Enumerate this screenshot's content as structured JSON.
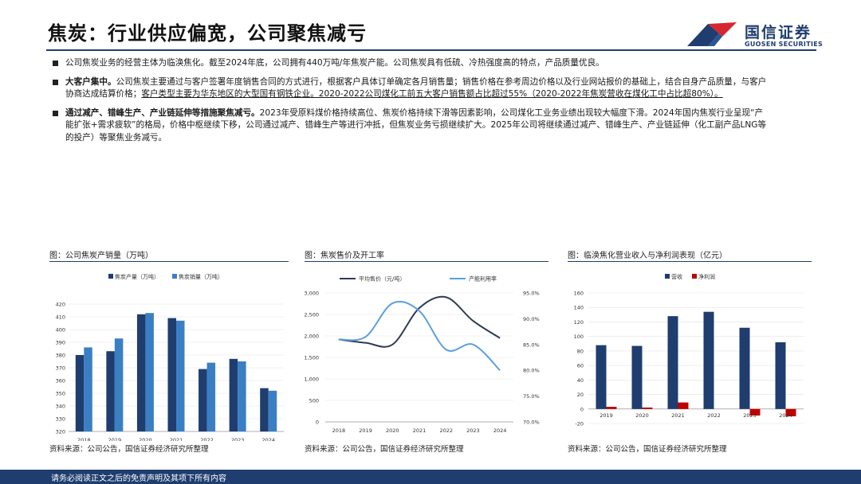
{
  "header": {
    "title": "焦炭：行业供应偏宽，公司聚焦减亏",
    "logo_name": "国信证券",
    "logo_en": "GUOSEN SECURITIES"
  },
  "bullets": [
    {
      "bold": "",
      "text": "公司焦炭业务的经营主体为临涣焦化。截至2024年底，公司拥有440万吨/年焦炭产能。公司焦炭具有低硫、冷热强度高的特点，产品质量优良。",
      "underline": ""
    },
    {
      "bold": "大客户集中。",
      "text": "公司焦炭主要通过与客户签署年度销售合同的方式进行，根据客户具体订单确定各月销售量；销售价格在参考周边价格以及行业网站报价的基础上，结合自身产品质量，与客户协商达成结算价格；",
      "underline": "客户类型主要为华东地区的大型国有钢铁企业。2020-2022公司煤化工前五大客户销售额占比超过55%（2020-2022年焦炭营收在煤化工中占比超80%）。"
    },
    {
      "bold": "通过减产、错峰生产、产业链延伸等措施聚焦减亏。",
      "text": "2023年受原料煤价格持续高位、焦炭价格持续下滑等因素影响，公司煤化工业务业绩出现较大幅度下滑。2024年国内焦炭行业呈现“产能扩张+需求疲软”的格局，价格中枢继续下移，公司通过减产、错峰生产等进行冲抵，但焦炭业务亏损继续扩大。2025年公司将继续通过减产、错峰生产、产业链延伸（化工副产品LNG等的投产）等聚焦业务减亏。",
      "underline": ""
    }
  ],
  "charts": {
    "c1_title": "图：公司焦炭产销量（万吨）",
    "c2_title": "图：焦炭售价及开工率",
    "c3_title": "图：临涣焦化营业收入与净利润表现（亿元）",
    "source": "资料来源：公司公告，国信证券经济研究所整理"
  },
  "footer": "请务必阅读正文之后的免责声明及其项下所有内容",
  "colors": {
    "navy": "#1f3d6e",
    "blue": "#3a7fc4",
    "red": "#c00000",
    "light_blue": "#5aa0dc"
  },
  "chart_data": [
    {
      "type": "bar",
      "categories": [
        "2018",
        "2019",
        "2020",
        "2021",
        "2022",
        "2023",
        "2024"
      ],
      "series": [
        {
          "name": "焦炭产量（万吨）",
          "values": [
            380,
            383,
            412,
            409,
            369,
            377,
            354
          ]
        },
        {
          "name": "焦炭销量（万吨）",
          "values": [
            386,
            393,
            413,
            407,
            374,
            375,
            352
          ]
        }
      ],
      "ylim": [
        320,
        420
      ],
      "yticks": [
        320,
        330,
        340,
        350,
        360,
        370,
        380,
        390,
        400,
        410,
        420
      ],
      "legend": "top",
      "grid": true
    },
    {
      "type": "line",
      "x": [
        "2018",
        "2019",
        "2020",
        "2021",
        "2022",
        "2023",
        "2024"
      ],
      "series": [
        {
          "name": "平均售价（元/吨）",
          "axis": "left",
          "values": [
            1920,
            1840,
            1800,
            2650,
            2900,
            2350,
            1950
          ]
        },
        {
          "name": "产能利用率",
          "axis": "right",
          "values": [
            0.86,
            0.865,
            0.93,
            0.915,
            0.84,
            0.85,
            0.8
          ]
        }
      ],
      "ylim_left": [
        0,
        3000
      ],
      "yticks_left": [
        "0",
        "500",
        "1,000",
        "1,500",
        "2,000",
        "2,500",
        "3,000"
      ],
      "ylim_right": [
        0.7,
        0.95
      ],
      "yticks_right": [
        "70.0%",
        "75.0%",
        "80.0%",
        "85.0%",
        "90.0%",
        "95.0%"
      ],
      "legend": "top",
      "grid": true
    },
    {
      "type": "bar",
      "categories": [
        "2019",
        "2020",
        "2021",
        "2022",
        "2023",
        "2024"
      ],
      "series": [
        {
          "name": "营收",
          "values": [
            88,
            87,
            128,
            134,
            112,
            92
          ]
        },
        {
          "name": "净利润",
          "values": [
            3,
            2,
            9,
            0,
            -9,
            -10
          ]
        }
      ],
      "ylim": [
        -20,
        160
      ],
      "yticks": [
        -20,
        0,
        20,
        40,
        60,
        80,
        100,
        120,
        140,
        160
      ],
      "legend": "top",
      "grid": true
    }
  ]
}
